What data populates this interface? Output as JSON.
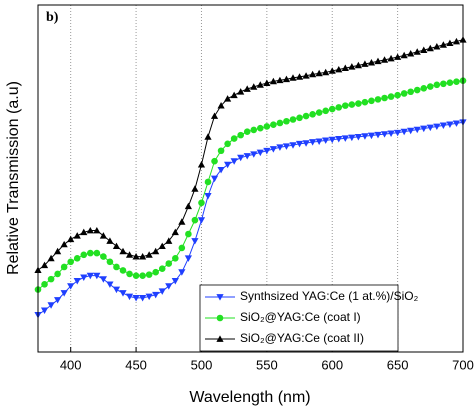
{
  "chart_data": {
    "type": "line",
    "annotation": "b)",
    "xlabel": "Wavelength (nm)",
    "ylabel": "Relative Transmission (a.u)",
    "xlim": [
      375,
      700
    ],
    "xticks": [
      400,
      450,
      500,
      550,
      600,
      650,
      700
    ],
    "ylim": [
      0,
      100
    ],
    "grid": true,
    "legend": "lower right",
    "x": [
      375,
      380,
      385,
      390,
      395,
      400,
      405,
      410,
      415,
      420,
      425,
      430,
      435,
      440,
      445,
      450,
      455,
      460,
      465,
      470,
      475,
      480,
      485,
      490,
      495,
      500,
      505,
      510,
      515,
      520,
      525,
      530,
      535,
      540,
      545,
      550,
      555,
      560,
      565,
      570,
      575,
      580,
      585,
      590,
      595,
      600,
      605,
      610,
      615,
      620,
      625,
      630,
      635,
      640,
      645,
      650,
      655,
      660,
      665,
      670,
      675,
      680,
      685,
      690,
      695,
      700
    ],
    "series": [
      {
        "name": "Synthsized YAG:Ce (1 at.%)/SiO₂",
        "color": "#1f3fff",
        "marker": "triangle-down",
        "values": [
          10.7,
          12,
          13.5,
          15,
          17,
          19,
          20.5,
          21.5,
          22,
          22,
          21,
          19.5,
          18,
          17,
          16,
          15.6,
          15.6,
          16,
          16.5,
          17.5,
          19,
          20.5,
          23,
          27,
          32,
          38,
          45,
          50,
          52.5,
          54,
          55,
          56,
          56.5,
          57,
          57.5,
          58,
          58.5,
          59,
          59.3,
          59.6,
          60,
          60.2,
          60.5,
          60.7,
          61,
          61.2,
          61.4,
          61.6,
          61.8,
          62,
          62.2,
          62.4,
          62.6,
          62.8,
          63,
          63.2,
          63.5,
          63.8,
          64.1,
          64.4,
          64.7,
          65,
          65.3,
          65.6,
          65.9,
          66.2
        ]
      },
      {
        "name": "SiO₂@YAG:Ce (coat I)",
        "color": "#22e022",
        "marker": "circle",
        "values": [
          18,
          19.5,
          21,
          22.5,
          24.5,
          26,
          27,
          28,
          28.5,
          28.5,
          27.5,
          26,
          24.5,
          23.5,
          22.5,
          22,
          22,
          22.3,
          23,
          24,
          25.5,
          27,
          30,
          34,
          38,
          43,
          49,
          55,
          58,
          60,
          61.5,
          62.5,
          63.5,
          64,
          64.5,
          65,
          65.5,
          66,
          66.5,
          67,
          67.5,
          68,
          68.5,
          69,
          69.5,
          70,
          70.5,
          71,
          71.3,
          71.6,
          72,
          72.4,
          72.8,
          73.2,
          73.6,
          74,
          74.5,
          75,
          75.5,
          76,
          76.5,
          77,
          77.3,
          77.6,
          77.9,
          78.2
        ]
      },
      {
        "name": "SiO₂@YAG:Ce (coat II)",
        "color": "#000000",
        "marker": "triangle-up",
        "values": [
          23.6,
          25,
          27,
          29,
          31,
          32.5,
          33.5,
          34.5,
          35,
          35,
          33.5,
          32,
          30.5,
          29,
          28,
          27.5,
          27.5,
          28,
          29,
          30.5,
          32,
          34.5,
          37.5,
          42,
          47,
          54,
          62,
          68,
          71,
          73,
          74,
          75,
          75.8,
          76.4,
          77,
          77.5,
          78,
          78.3,
          78.6,
          79,
          79.3,
          79.6,
          80,
          80.3,
          80.6,
          81,
          81.4,
          81.8,
          82.2,
          82.6,
          83,
          83.4,
          83.8,
          84.2,
          84.6,
          85,
          85.5,
          86,
          86.5,
          87,
          87.5,
          88,
          88.5,
          89,
          89.5,
          90
        ]
      }
    ]
  }
}
